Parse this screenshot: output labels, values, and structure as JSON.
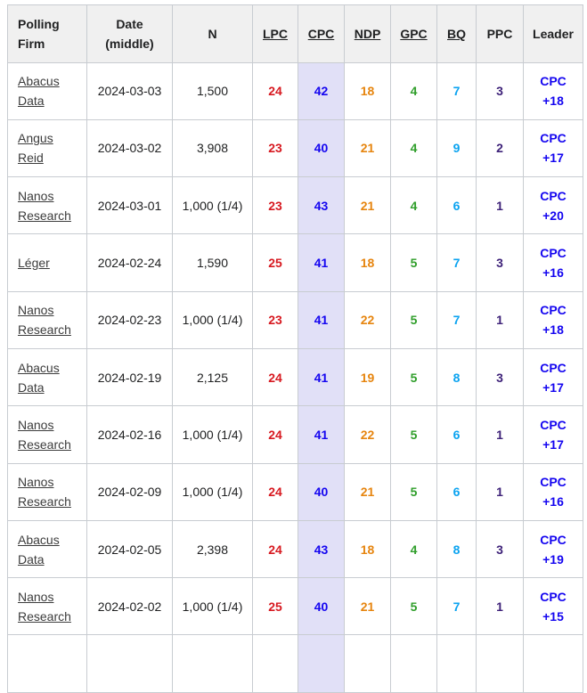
{
  "table": {
    "border_color": "#c8ccd1",
    "header_bg": "#f0f0f0",
    "leading_party_highlight_bg": "#e1e0f7",
    "columns": [
      {
        "key": "firm",
        "label": "Polling Firm",
        "header_link": false,
        "row_link": true,
        "value_color": null
      },
      {
        "key": "date",
        "label": "Date (middle)",
        "header_link": false,
        "value_color": null
      },
      {
        "key": "n",
        "label": "N",
        "header_link": false,
        "value_color": null
      },
      {
        "key": "lpc",
        "label": "LPC",
        "header_link": true,
        "value_color": "#d71920"
      },
      {
        "key": "cpc",
        "label": "CPC",
        "header_link": true,
        "value_color": "#1405f0",
        "highlight": true
      },
      {
        "key": "ndp",
        "label": "NDP",
        "header_link": true,
        "value_color": "#e6850f"
      },
      {
        "key": "gpc",
        "label": "GPC",
        "header_link": true,
        "value_color": "#2f9e2a"
      },
      {
        "key": "bq",
        "label": "BQ",
        "header_link": true,
        "value_color": "#0ba3f0"
      },
      {
        "key": "ppc",
        "label": "PPC",
        "header_link": false,
        "value_color": "#3e2279"
      },
      {
        "key": "leader",
        "label": "Leader",
        "header_link": false,
        "value_color": "#1405f0"
      }
    ],
    "rows": [
      {
        "firm": "Abacus Data",
        "date": "2024-03-03",
        "n": "1,500",
        "lpc": "24",
        "cpc": "42",
        "ndp": "18",
        "gpc": "4",
        "bq": "7",
        "ppc": "3",
        "leader": "CPC +18"
      },
      {
        "firm": "Angus Reid",
        "date": "2024-03-02",
        "n": "3,908",
        "lpc": "23",
        "cpc": "40",
        "ndp": "21",
        "gpc": "4",
        "bq": "9",
        "ppc": "2",
        "leader": "CPC +17"
      },
      {
        "firm": "Nanos Research",
        "date": "2024-03-01",
        "n": "1,000 (1/4)",
        "lpc": "23",
        "cpc": "43",
        "ndp": "21",
        "gpc": "4",
        "bq": "6",
        "ppc": "1",
        "leader": "CPC +20"
      },
      {
        "firm": "Léger",
        "date": "2024-02-24",
        "n": "1,590",
        "lpc": "25",
        "cpc": "41",
        "ndp": "18",
        "gpc": "5",
        "bq": "7",
        "ppc": "3",
        "leader": "CPC +16"
      },
      {
        "firm": "Nanos Research",
        "date": "2024-02-23",
        "n": "1,000 (1/4)",
        "lpc": "23",
        "cpc": "41",
        "ndp": "22",
        "gpc": "5",
        "bq": "7",
        "ppc": "1",
        "leader": "CPC +18"
      },
      {
        "firm": "Abacus Data",
        "date": "2024-02-19",
        "n": "2,125",
        "lpc": "24",
        "cpc": "41",
        "ndp": "19",
        "gpc": "5",
        "bq": "8",
        "ppc": "3",
        "leader": "CPC +17"
      },
      {
        "firm": "Nanos Research",
        "date": "2024-02-16",
        "n": "1,000 (1/4)",
        "lpc": "24",
        "cpc": "41",
        "ndp": "22",
        "gpc": "5",
        "bq": "6",
        "ppc": "1",
        "leader": "CPC +17"
      },
      {
        "firm": "Nanos Research",
        "date": "2024-02-09",
        "n": "1,000 (1/4)",
        "lpc": "24",
        "cpc": "40",
        "ndp": "21",
        "gpc": "5",
        "bq": "6",
        "ppc": "1",
        "leader": "CPC +16"
      },
      {
        "firm": "Abacus Data",
        "date": "2024-02-05",
        "n": "2,398",
        "lpc": "24",
        "cpc": "43",
        "ndp": "18",
        "gpc": "4",
        "bq": "8",
        "ppc": "3",
        "leader": "CPC +19"
      },
      {
        "firm": "Nanos Research",
        "date": "2024-02-02",
        "n": "1,000 (1/4)",
        "lpc": "25",
        "cpc": "40",
        "ndp": "21",
        "gpc": "5",
        "bq": "7",
        "ppc": "1",
        "leader": "CPC +15"
      }
    ],
    "has_partial_row_at_bottom": true
  }
}
